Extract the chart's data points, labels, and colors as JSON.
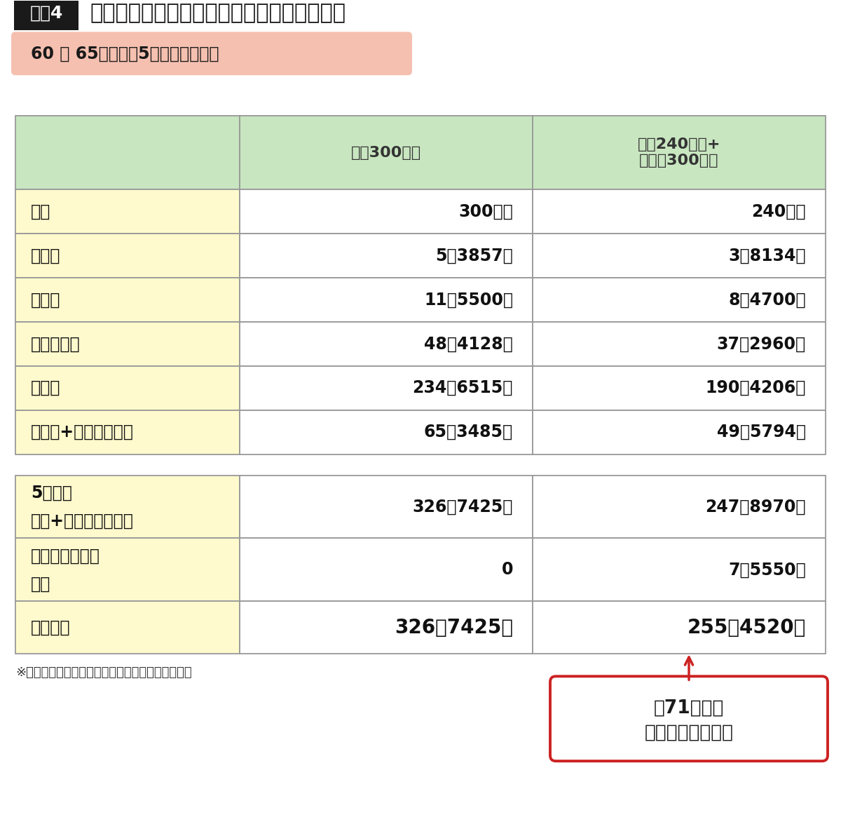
{
  "title_badge": "図表4",
  "title_text": "給料の一部を退職金に回すシミュレーション",
  "subtitle": "60 〜 65歳までの5年間働いた場合",
  "col_headers": [
    "",
    "年収300万円",
    "年収240万円+\n退職金300万円"
  ],
  "section1_rows": [
    [
      "年収",
      "300万円",
      "240万円"
    ],
    [
      "所得税",
      "5万3857円",
      "3万8134円"
    ],
    [
      "住民税",
      "11万5500円",
      "8万4700円"
    ],
    [
      "社会保険料",
      "48万4128円",
      "37万2960円"
    ],
    [
      "手取り",
      "234万6515円",
      "190万4206円"
    ],
    [
      "（税金+社会保険料）",
      "65万3485円",
      "49万5794円"
    ]
  ],
  "section2_rows": [
    [
      "5年間の\n税金+社会保険料合計",
      "326万7425円",
      "247万8970円"
    ],
    [
      "退職金にかかる\n税金",
      "0",
      "7万5550円"
    ],
    [
      "税額合計",
      "326万7425円",
      "255万4520円"
    ]
  ],
  "footer_note": "※所得控除は基礎控除、社会保険料控除のみで試算",
  "callout_text": "約71万円の\n節税効果がある！",
  "colors": {
    "background": "#ffffff",
    "title_badge_bg": "#1a1a1a",
    "title_badge_text": "#ffffff",
    "title_text": "#1a1a1a",
    "subtitle_bg": "#f5c0b0",
    "subtitle_text": "#1a1a1a",
    "header_bg": "#c8e6c0",
    "section1_label_bg": "#fffacd",
    "section1_value_bg": "#ffffff",
    "section2_label_bg": "#fffacd",
    "section2_value_bg": "#ffffff",
    "border": "#999999",
    "callout_bg": "#ffffff",
    "callout_border": "#cc2222",
    "callout_text": "#1a1a1a",
    "arrow_color": "#cc2222",
    "footer_text": "#333333"
  }
}
